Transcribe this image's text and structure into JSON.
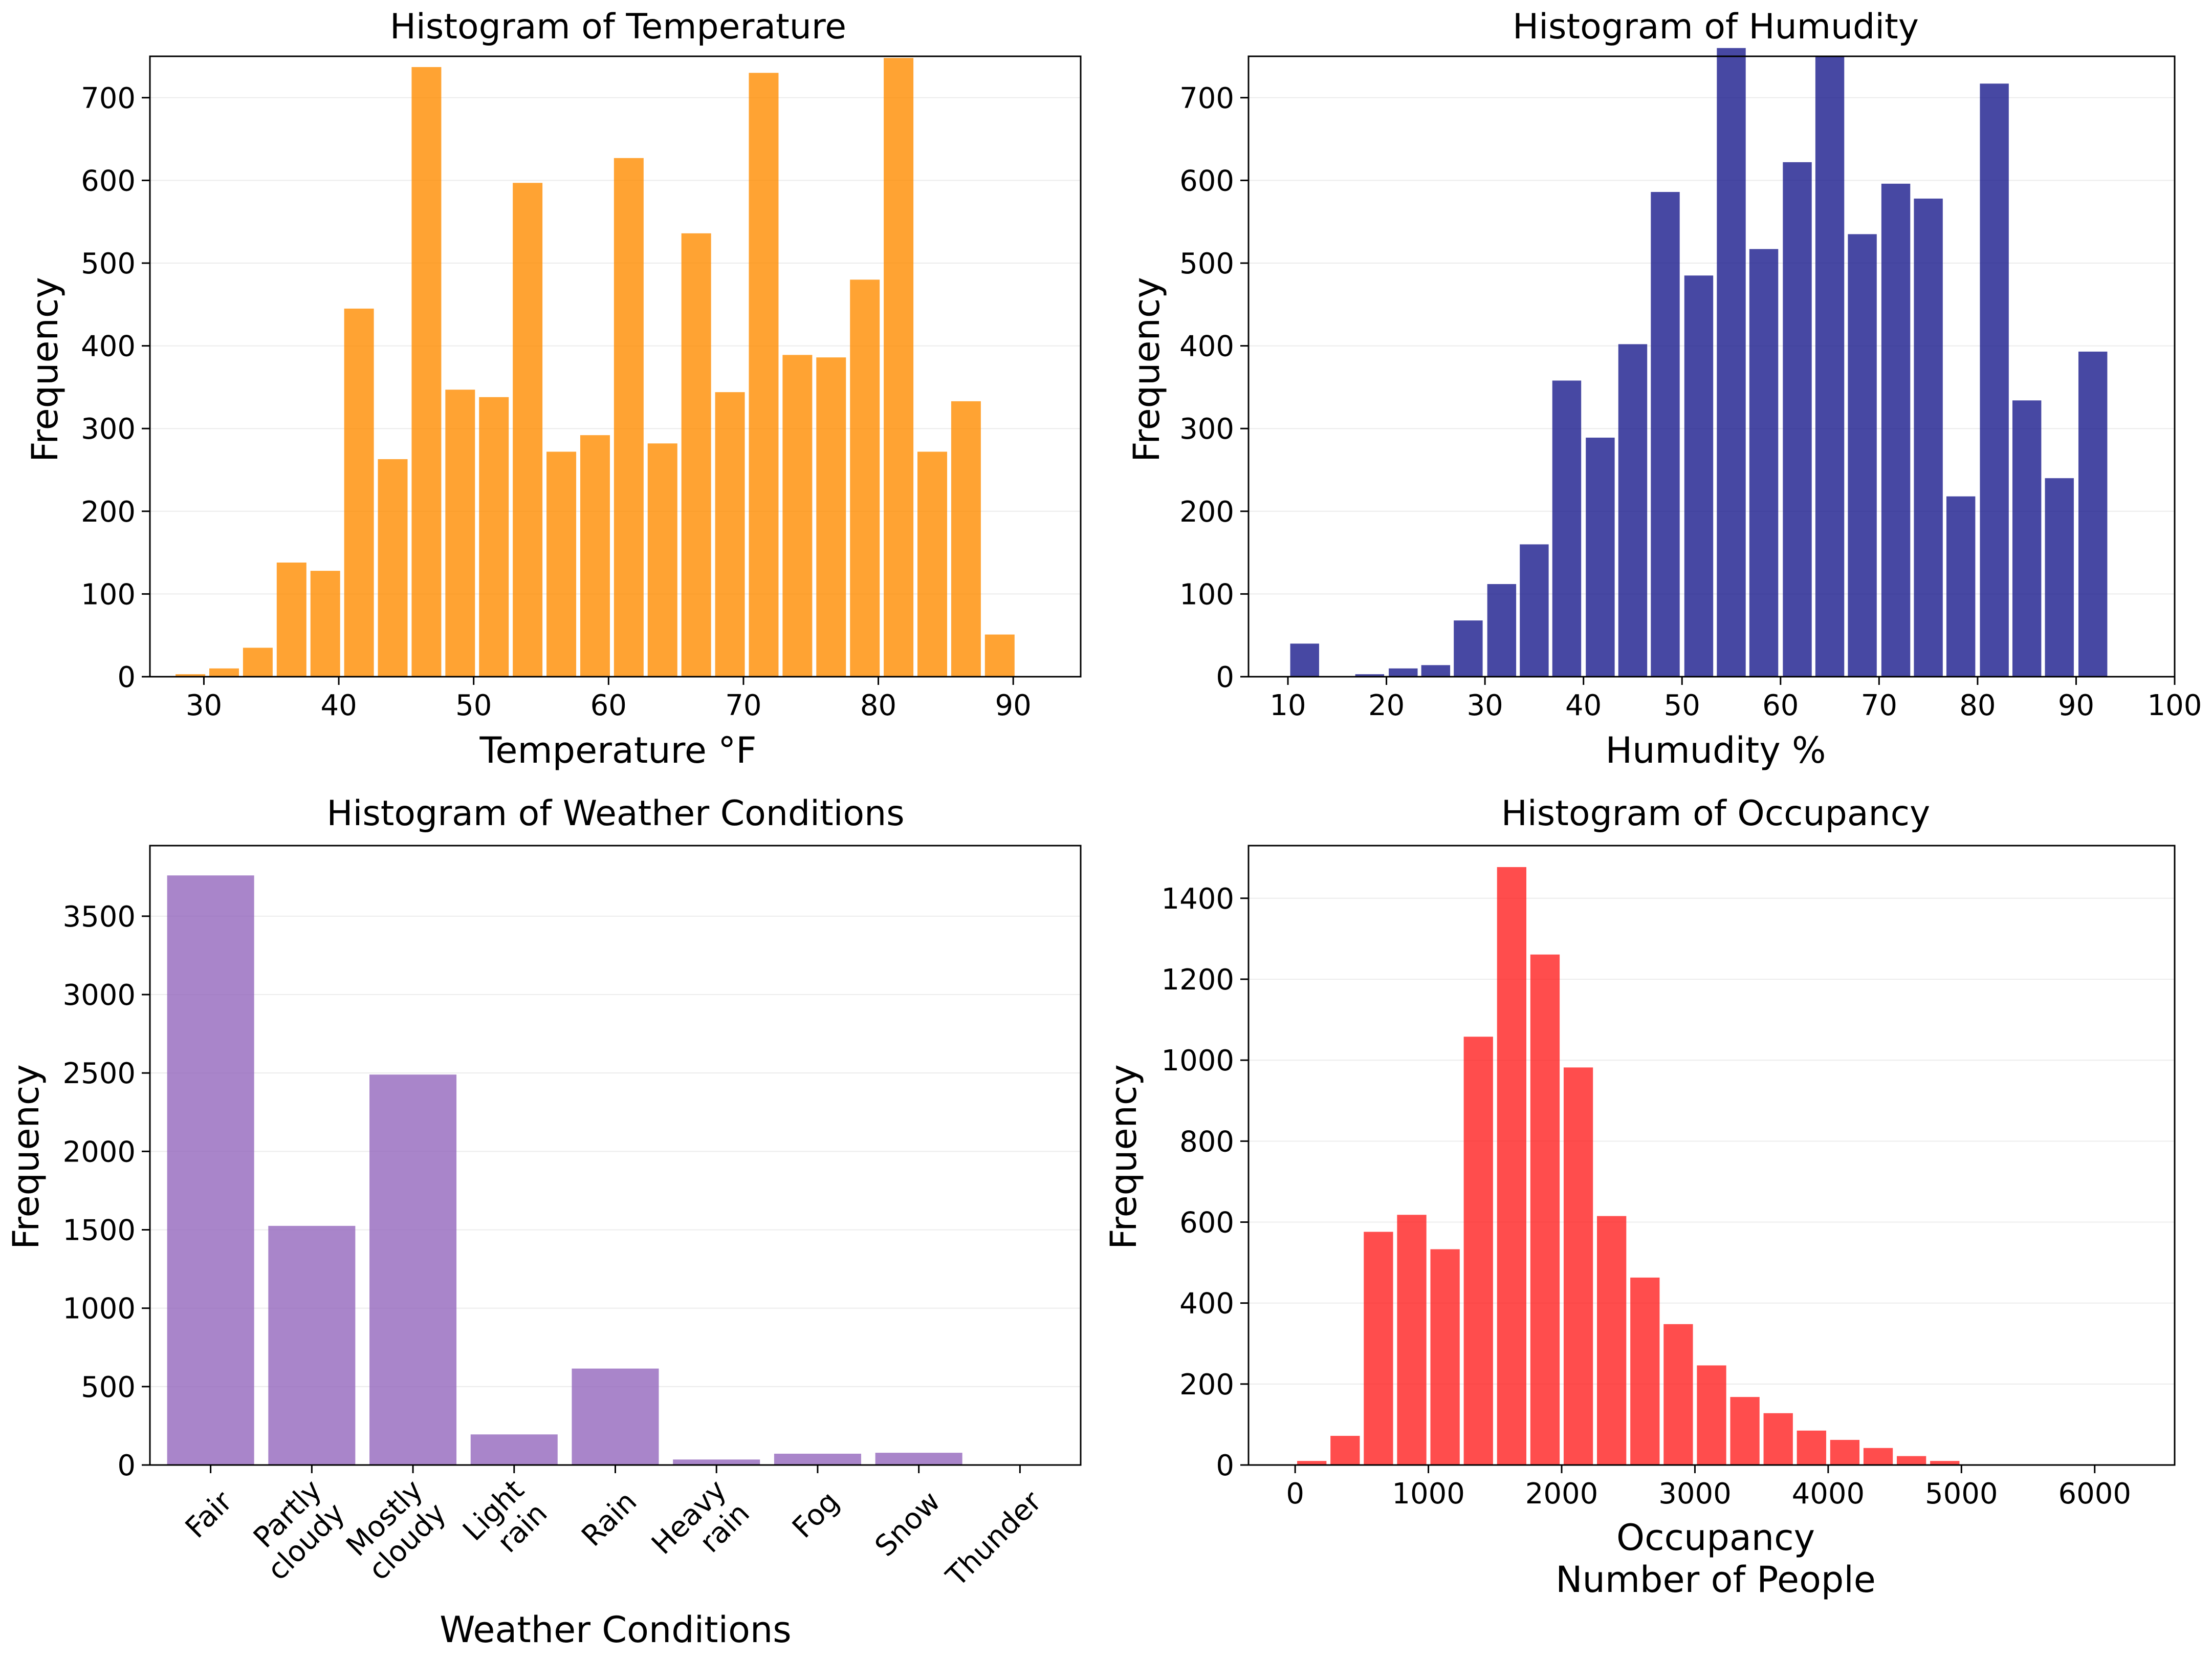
{
  "figure": {
    "ylabel_common": "Frequency"
  },
  "chart_data": [
    {
      "id": "temperature",
      "type": "bar",
      "title": "Histogram of Temperature",
      "xlabel": "Temperature °F",
      "ylabel": "Frequency",
      "color": "#ff8c00",
      "xlim": [
        26,
        95
      ],
      "ylim": [
        0,
        750
      ],
      "xticks": [
        30,
        40,
        50,
        60,
        70,
        80,
        90
      ],
      "yticks": [
        0,
        100,
        200,
        300,
        400,
        500,
        600,
        700
      ],
      "bin_width": 2.5,
      "bin_centers": [
        29,
        31.5,
        34,
        36.5,
        39,
        41.5,
        44,
        46.5,
        49,
        51.5,
        54,
        56.5,
        59,
        61.5,
        64,
        66.5,
        69,
        71.5,
        74,
        76.5,
        79,
        81.5,
        84,
        86.5,
        89
      ],
      "values": [
        3,
        10,
        35,
        138,
        128,
        445,
        263,
        737,
        347,
        338,
        597,
        272,
        292,
        627,
        282,
        536,
        344,
        730,
        389,
        386,
        480,
        748,
        272,
        333,
        51
      ]
    },
    {
      "id": "humidity",
      "type": "bar",
      "title": "Histogram of Humudity",
      "xlabel": "Humudity %",
      "ylabel": "Frequency",
      "color": "#191a8c",
      "xlim": [
        6,
        100
      ],
      "ylim": [
        0,
        750
      ],
      "xticks": [
        10,
        20,
        30,
        40,
        50,
        60,
        70,
        80,
        90,
        100
      ],
      "yticks": [
        0,
        100,
        200,
        300,
        400,
        500,
        600,
        700
      ],
      "bin_width": 3.33,
      "bin_centers": [
        11.7,
        15,
        18.3,
        21.7,
        25,
        28.3,
        31.7,
        35,
        38.3,
        41.7,
        45,
        48.3,
        51.7,
        55,
        58.3,
        61.7,
        65,
        68.3,
        71.7,
        75,
        78.3,
        81.7,
        85,
        88.3,
        91.7
      ],
      "values": [
        40,
        0,
        3,
        10,
        14,
        68,
        112,
        160,
        358,
        289,
        402,
        586,
        485,
        760,
        517,
        622,
        750,
        535,
        596,
        578,
        218,
        717,
        334,
        240,
        393
      ]
    },
    {
      "id": "weather",
      "type": "bar",
      "title": "Histogram of Weather Conditions",
      "xlabel": "Weather Conditions",
      "ylabel": "Frequency",
      "color": "#9467bd",
      "ylim": [
        0,
        3950
      ],
      "yticks": [
        0,
        500,
        1000,
        1500,
        2000,
        2500,
        3000,
        3500
      ],
      "categories": [
        "Fair",
        "Partly cloudy",
        "Mostly cloudy",
        "Light rain",
        "Rain",
        "Heavy rain",
        "Fog",
        "Snow",
        "Thunder"
      ],
      "category_lines": [
        [
          "Fair"
        ],
        [
          "Partly",
          "cloudy"
        ],
        [
          "Mostly",
          "cloudy"
        ],
        [
          "Light",
          "rain"
        ],
        [
          "Rain"
        ],
        [
          "Heavy",
          "rain"
        ],
        [
          "Fog"
        ],
        [
          "Snow"
        ],
        [
          "Thunder"
        ]
      ],
      "values": [
        3760,
        1525,
        2490,
        195,
        615,
        35,
        72,
        78,
        0
      ]
    },
    {
      "id": "occupancy",
      "type": "bar",
      "title": "Histogram of Occupancy",
      "xlabel": "Occupancy",
      "xlabel2": "Number of People",
      "ylabel": "Frequency",
      "color": "#ff2020",
      "xlim": [
        -350,
        6600
      ],
      "ylim": [
        0,
        1530
      ],
      "xticks": [
        0,
        1000,
        2000,
        3000,
        4000,
        5000,
        6000
      ],
      "yticks": [
        0,
        200,
        400,
        600,
        800,
        1000,
        1200,
        1400
      ],
      "bin_width": 250,
      "bin_centers": [
        125,
        375,
        625,
        875,
        1125,
        1375,
        1625,
        1875,
        2125,
        2375,
        2625,
        2875,
        3125,
        3375,
        3625,
        3875,
        4125,
        4375,
        4625,
        4875,
        5125,
        5375,
        5625,
        5875,
        6125
      ],
      "values": [
        10,
        72,
        576,
        618,
        533,
        1058,
        1477,
        1261,
        982,
        615,
        463,
        348,
        246,
        168,
        128,
        85,
        62,
        42,
        22,
        10,
        0,
        0,
        0,
        0,
        0
      ]
    }
  ]
}
